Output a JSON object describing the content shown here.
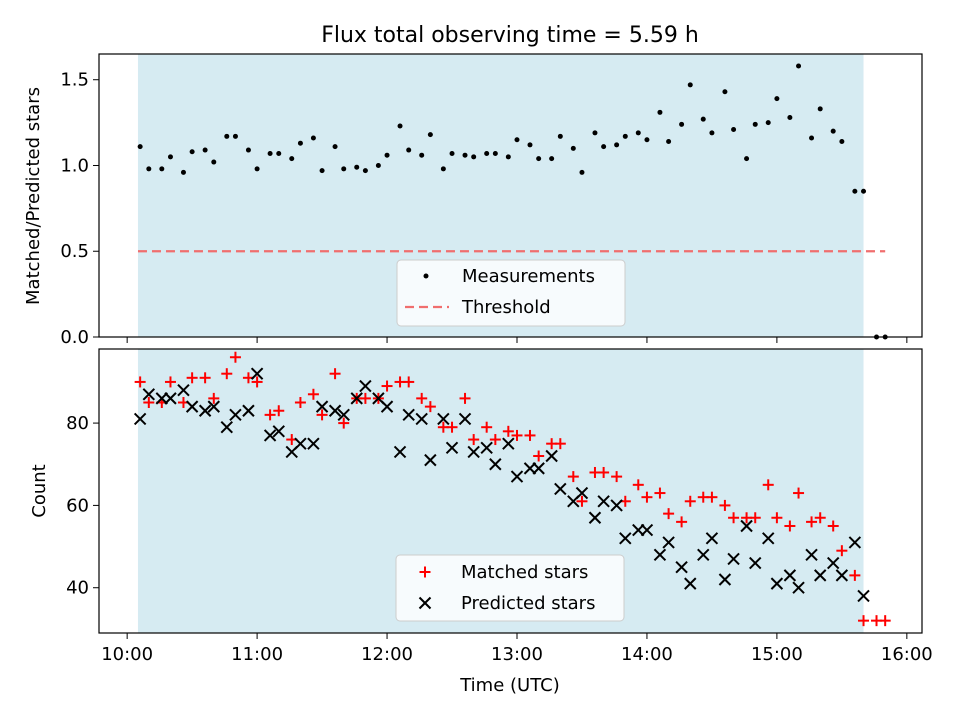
{
  "chart_data": [
    {
      "type": "scatter",
      "title": "Flux total observing time = 5.59 h",
      "ylabel": "Matched/Predicted stars",
      "ylim": [
        0,
        1.65
      ],
      "yticks": [
        0.0,
        0.5,
        1.0,
        1.5
      ],
      "ytick_labels": [
        "0.0",
        "0.5",
        "1.0",
        "1.5"
      ],
      "shaded_span": [
        "10:05",
        "15:40"
      ],
      "threshold": 0.5,
      "threshold_range": [
        "10:05",
        "15:50"
      ],
      "legend": {
        "placement": "lower center",
        "entries": [
          "Measurements",
          "Threshold"
        ]
      },
      "series": [
        {
          "name": "Measurements",
          "x": [
            "10:06",
            "10:10",
            "10:16",
            "10:20",
            "10:26",
            "10:30",
            "10:36",
            "10:40",
            "10:46",
            "10:50",
            "10:56",
            "11:00",
            "11:06",
            "11:10",
            "11:16",
            "11:20",
            "11:26",
            "11:30",
            "11:36",
            "11:40",
            "11:46",
            "11:50",
            "11:56",
            "12:00",
            "12:06",
            "12:10",
            "12:16",
            "12:20",
            "12:26",
            "12:30",
            "12:36",
            "12:40",
            "12:46",
            "12:50",
            "12:56",
            "13:00",
            "13:06",
            "13:10",
            "13:16",
            "13:20",
            "13:26",
            "13:30",
            "13:36",
            "13:40",
            "13:46",
            "13:50",
            "13:56",
            "14:00",
            "14:06",
            "14:10",
            "14:16",
            "14:20",
            "14:26",
            "14:30",
            "14:36",
            "14:40",
            "14:46",
            "14:50",
            "14:56",
            "15:00",
            "15:06",
            "15:10",
            "15:16",
            "15:20",
            "15:26",
            "15:30",
            "15:36",
            "15:40",
            "15:46",
            "15:50"
          ],
          "y": [
            1.11,
            0.98,
            0.98,
            1.05,
            0.96,
            1.08,
            1.09,
            1.02,
            1.17,
            1.17,
            1.09,
            0.98,
            1.07,
            1.07,
            1.04,
            1.13,
            1.16,
            0.97,
            1.11,
            0.98,
            0.99,
            0.97,
            1.0,
            1.06,
            1.23,
            1.09,
            1.06,
            1.18,
            0.98,
            1.07,
            1.06,
            1.05,
            1.07,
            1.07,
            1.05,
            1.15,
            1.12,
            1.04,
            1.04,
            1.17,
            1.1,
            0.96,
            1.19,
            1.11,
            1.12,
            1.17,
            1.19,
            1.15,
            1.31,
            1.14,
            1.24,
            1.47,
            1.27,
            1.19,
            1.43,
            1.21,
            1.04,
            1.24,
            1.25,
            1.39,
            1.28,
            1.58,
            1.16,
            1.33,
            1.2,
            1.14,
            0.85,
            0.85,
            0.0,
            0.0
          ]
        }
      ]
    },
    {
      "type": "scatter",
      "xlabel": "Time (UTC)",
      "ylabel": "Count",
      "ylim": [
        29,
        98
      ],
      "yticks": [
        40,
        60,
        80
      ],
      "ytick_labels": [
        "40",
        "60",
        "80"
      ],
      "xlim": [
        "09:47",
        "16:07"
      ],
      "xticks": [
        "10:00",
        "11:00",
        "12:00",
        "13:00",
        "14:00",
        "15:00",
        "16:00"
      ],
      "shaded_span": [
        "10:05",
        "15:40"
      ],
      "legend": {
        "placement": "lower center",
        "entries": [
          "Matched stars",
          "Predicted stars"
        ]
      },
      "series": [
        {
          "name": "Matched stars",
          "color": "#ff0000",
          "x": [
            "10:06",
            "10:10",
            "10:16",
            "10:20",
            "10:26",
            "10:30",
            "10:36",
            "10:40",
            "10:46",
            "10:50",
            "10:56",
            "11:00",
            "11:06",
            "11:10",
            "11:16",
            "11:20",
            "11:26",
            "11:30",
            "11:36",
            "11:40",
            "11:46",
            "11:50",
            "11:56",
            "12:00",
            "12:06",
            "12:10",
            "12:16",
            "12:20",
            "12:26",
            "12:30",
            "12:36",
            "12:40",
            "12:46",
            "12:50",
            "12:56",
            "13:00",
            "13:06",
            "13:10",
            "13:16",
            "13:20",
            "13:26",
            "13:30",
            "13:36",
            "13:40",
            "13:46",
            "13:50",
            "13:56",
            "14:00",
            "14:06",
            "14:10",
            "14:16",
            "14:20",
            "14:26",
            "14:30",
            "14:36",
            "14:40",
            "14:46",
            "14:50",
            "14:56",
            "15:00",
            "15:06",
            "15:10",
            "15:16",
            "15:20",
            "15:26",
            "15:30",
            "15:36",
            "15:40",
            "15:46",
            "15:50"
          ],
          "y": [
            90,
            85,
            85,
            90,
            85,
            91,
            91,
            86,
            92,
            96,
            91,
            90,
            82,
            83,
            76,
            85,
            87,
            82,
            92,
            80,
            86,
            86,
            86,
            89,
            90,
            90,
            86,
            84,
            79,
            79,
            86,
            76,
            79,
            76,
            78,
            77,
            77,
            72,
            75,
            75,
            67,
            61,
            68,
            68,
            67,
            61,
            65,
            62,
            63,
            58,
            56,
            61,
            62,
            62,
            60,
            57,
            57,
            57,
            65,
            57,
            55,
            63,
            56,
            57,
            55,
            49,
            43,
            32,
            32,
            32
          ]
        },
        {
          "name": "Predicted stars",
          "color": "#000000",
          "x": [
            "10:06",
            "10:10",
            "10:16",
            "10:20",
            "10:26",
            "10:30",
            "10:36",
            "10:40",
            "10:46",
            "10:50",
            "10:56",
            "11:00",
            "11:06",
            "11:10",
            "11:16",
            "11:20",
            "11:26",
            "11:30",
            "11:36",
            "11:40",
            "11:46",
            "11:50",
            "11:56",
            "12:00",
            "12:06",
            "12:10",
            "12:16",
            "12:20",
            "12:26",
            "12:30",
            "12:36",
            "12:40",
            "12:46",
            "12:50",
            "12:56",
            "13:00",
            "13:06",
            "13:10",
            "13:16",
            "13:20",
            "13:26",
            "13:30",
            "13:36",
            "13:40",
            "13:46",
            "13:50",
            "13:56",
            "14:00",
            "14:06",
            "14:10",
            "14:16",
            "14:20",
            "14:26",
            "14:30",
            "14:36",
            "14:40",
            "14:46",
            "14:50",
            "14:56",
            "15:00",
            "15:06",
            "15:10",
            "15:16",
            "15:20",
            "15:26",
            "15:30",
            "15:36",
            "15:40"
          ],
          "y": [
            81,
            87,
            86,
            86,
            88,
            84,
            83,
            84,
            79,
            82,
            83,
            92,
            77,
            78,
            73,
            75,
            75,
            84,
            83,
            82,
            86,
            89,
            86,
            84,
            73,
            82,
            81,
            71,
            81,
            74,
            81,
            73,
            74,
            70,
            75,
            67,
            69,
            69,
            72,
            64,
            61,
            63,
            57,
            61,
            60,
            52,
            54,
            54,
            48,
            51,
            45,
            41,
            48,
            52,
            42,
            47,
            55,
            46,
            52,
            41,
            43,
            40,
            48,
            43,
            46,
            43,
            51,
            38
          ]
        }
      ]
    }
  ]
}
